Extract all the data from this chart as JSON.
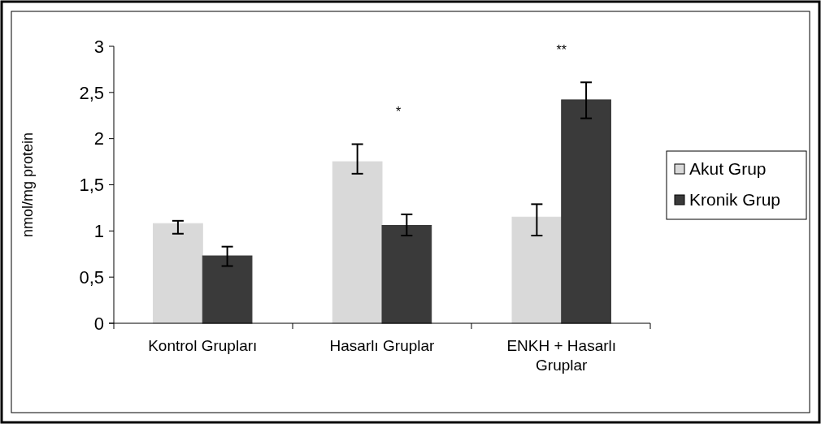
{
  "chart_data": {
    "type": "bar",
    "ylabel": "nmol/mg protein",
    "categories": [
      "Kontrol Grupları",
      "Hasarlı Gruplar",
      "ENKH + Hasarlı Gruplar"
    ],
    "series": [
      {
        "name": "Akut Grup",
        "color": "#d9d9d9",
        "values": [
          1.08,
          1.75,
          1.15
        ],
        "errors": [
          [
            0.97,
            1.11
          ],
          [
            1.62,
            1.94
          ],
          [
            0.95,
            1.29
          ]
        ]
      },
      {
        "name": "Kronik Grup",
        "color": "#3a3a3a",
        "values": [
          0.73,
          1.06,
          2.42
        ],
        "errors": [
          [
            0.62,
            0.83
          ],
          [
            0.95,
            1.18
          ],
          [
            2.22,
            2.61
          ]
        ]
      }
    ],
    "ylim": [
      0,
      3
    ],
    "yticks": [
      0,
      {
        "value": 0.5,
        "label": "0,5"
      },
      1,
      {
        "value": 1.5,
        "label": "1,5"
      },
      2,
      {
        "value": 2.5,
        "label": "2,5"
      },
      3
    ],
    "annotations": [
      "*",
      "**"
    ],
    "legend": "right",
    "grid": false
  }
}
